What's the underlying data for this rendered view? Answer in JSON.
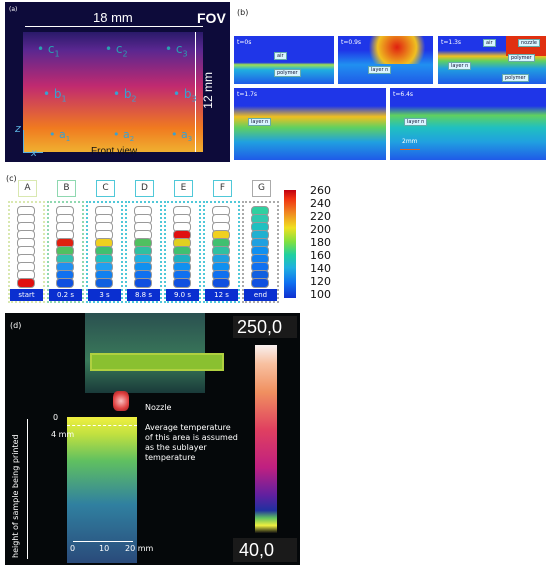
{
  "panel_a": {
    "tag": "(a)",
    "fov": "FOV",
    "width_label": "18 mm",
    "height_label": "12 mm",
    "view_label": "Front view",
    "axis_z": "z",
    "axis_x": "x",
    "points_c": [
      "c",
      "c",
      "c"
    ],
    "points_b": [
      "b",
      "b",
      "b"
    ],
    "points_a": [
      "a",
      "a",
      "a"
    ],
    "subs": [
      "1",
      "2",
      "3"
    ]
  },
  "panel_b": {
    "tag": "(b)",
    "frames": [
      {
        "time": "t=0s",
        "labels": [
          "air",
          "polymer"
        ]
      },
      {
        "time": "t=0.9s",
        "labels": [
          "layer n"
        ]
      },
      {
        "time": "t=1.3s",
        "labels": [
          "nozzle",
          "air",
          "polymer",
          "layer n",
          "polymer"
        ]
      },
      {
        "time": "t=1.7s",
        "labels": [
          "layer n"
        ]
      },
      {
        "time": "t=6.4s",
        "labels": [
          "layer n"
        ]
      }
    ],
    "scale": "2mm"
  },
  "panel_c": {
    "tag": "(c)",
    "columns": [
      {
        "letter": "A",
        "time": "start",
        "color": "#d9e8b0",
        "fills": [
          "#fff",
          "#fff",
          "#fff",
          "#fff",
          "#fff",
          "#fff",
          "#fff",
          "#fff",
          "#fff",
          "#e01010"
        ]
      },
      {
        "letter": "B",
        "time": "0.2 s",
        "color": "#8fd8b0",
        "fills": [
          "#fff",
          "#fff",
          "#fff",
          "#fff",
          "#e02010",
          "#50c060",
          "#30c0b0",
          "#2090f0",
          "#1070f0",
          "#1050e0"
        ]
      },
      {
        "letter": "C",
        "time": "3 s",
        "color": "#50c8d8",
        "fills": [
          "#fff",
          "#fff",
          "#fff",
          "#fff",
          "#f0d020",
          "#40c070",
          "#20c0c0",
          "#20a0f0",
          "#1080f0",
          "#1060e0"
        ]
      },
      {
        "letter": "D",
        "time": "8.8 s",
        "color": "#50c8d8",
        "fills": [
          "#fff",
          "#fff",
          "#fff",
          "#fff",
          "#50c060",
          "#30c0a0",
          "#20b0e0",
          "#1090f0",
          "#1070f0",
          "#1050e0"
        ]
      },
      {
        "letter": "E",
        "time": "9.0 s",
        "color": "#50c8d8",
        "fills": [
          "#fff",
          "#fff",
          "#fff",
          "#e01010",
          "#e0d020",
          "#40c070",
          "#20b0c0",
          "#1090f0",
          "#1070f0",
          "#1050e0"
        ]
      },
      {
        "letter": "F",
        "time": "12 s",
        "color": "#50c8d8",
        "fills": [
          "#fff",
          "#fff",
          "#fff",
          "#f0d020",
          "#40c070",
          "#30c0a0",
          "#20a0e0",
          "#1090f0",
          "#1070f0",
          "#1050e0"
        ]
      },
      {
        "letter": "G",
        "time": "end",
        "color": "#aaaaaa",
        "fills": [
          "#30d0a0",
          "#30c8b0",
          "#20c0c0",
          "#20b0d0",
          "#20a0e0",
          "#1090f0",
          "#1080f0",
          "#1070f0",
          "#1060e0",
          "#1050e0"
        ]
      }
    ],
    "colorbar_ticks": [
      "260",
      "240",
      "220",
      "200",
      "180",
      "160",
      "140",
      "120",
      "100"
    ]
  },
  "panel_d": {
    "tag": "(d)",
    "max_temp": "250,0",
    "min_temp": "40,0",
    "nozzle_label": "Nozzle",
    "annotation": "Average temperature\nof this area is assumed\nas the sublayer\ntemperature",
    "zero_label": "0",
    "four_mm": "4 mm",
    "y_axis_label": "height of sample being printed",
    "x_ticks": [
      "0",
      "10",
      "20 mm"
    ]
  }
}
